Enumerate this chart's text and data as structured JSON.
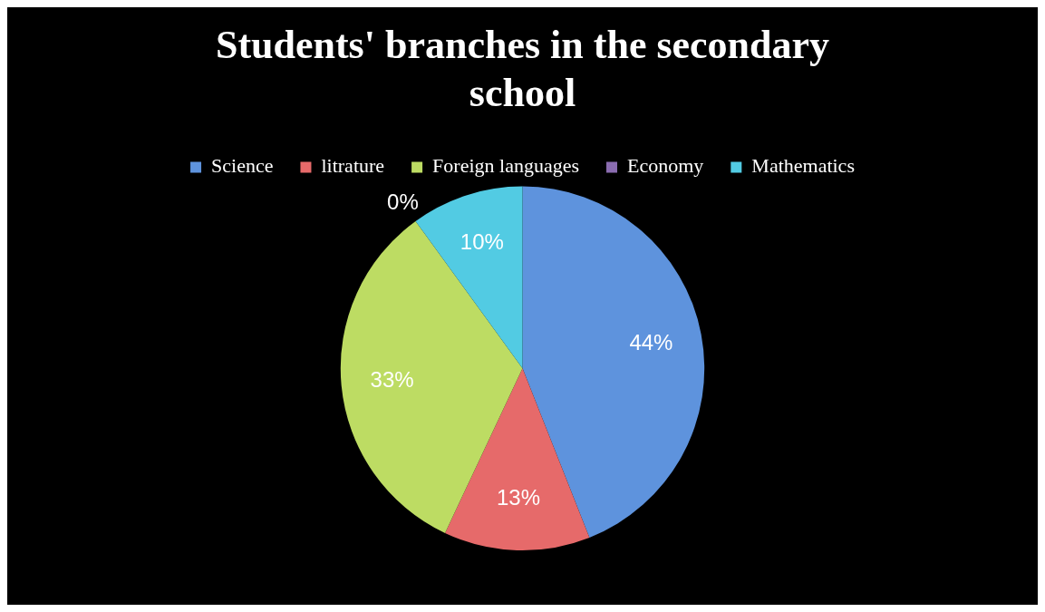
{
  "chart_data": {
    "type": "pie",
    "title": "Students' branches in the secondary school",
    "categories": [
      "Science",
      "litrature",
      "Foreign languages",
      "Economy",
      "Mathematics"
    ],
    "values": [
      44,
      13,
      33,
      0,
      10
    ],
    "value_labels": [
      "44%",
      "13%",
      "33%",
      "0%",
      "10%"
    ],
    "colors": [
      "#5e93dd",
      "#e66a6a",
      "#bddc63",
      "#8a6cb0",
      "#52cbe3"
    ],
    "legend": "top"
  }
}
